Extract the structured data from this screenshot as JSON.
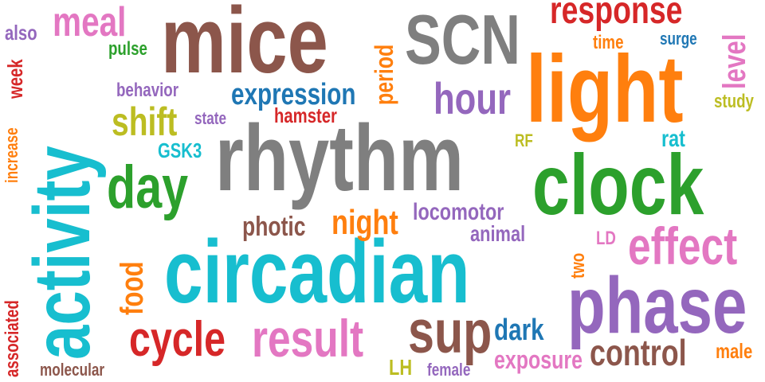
{
  "palette": {
    "blue": "#1f77b4",
    "orange": "#ff7f0e",
    "green": "#2ca02c",
    "red": "#d62728",
    "purple": "#9467bd",
    "brown": "#8c564b",
    "pink": "#e377c2",
    "gray": "#7f7f7f",
    "olive": "#bcbd22",
    "cyan": "#17becf"
  },
  "words": {
    "mice": "mice",
    "scn": "SCN",
    "response": "response",
    "light": "light",
    "rhythm": "rhythm",
    "clock": "clock",
    "circadian": "circadian",
    "phase": "phase",
    "activity": "activity",
    "day": "day",
    "meal": "meal",
    "also": "also",
    "pulse": "pulse",
    "week": "week",
    "behavior": "behavior",
    "expression": "expression",
    "period": "period",
    "hour": "hour",
    "time": "time",
    "surge": "surge",
    "level": "level",
    "study": "study",
    "shift": "shift",
    "state": "state",
    "hamster": "hamster",
    "increase": "increase",
    "gsk3": "GSK3",
    "rf": "RF",
    "rat": "rat",
    "photic": "photic",
    "night": "night",
    "locomotor": "locomotor",
    "animal": "animal",
    "ld": "LD",
    "effect": "effect",
    "food": "food",
    "two": "two",
    "associated": "associated",
    "cycle": "cycle",
    "result": "result",
    "sup": "sup",
    "dark": "dark",
    "exposure": "exposure",
    "control": "control",
    "male": "male",
    "molecular": "molecular",
    "lh": "LH",
    "female": "female"
  }
}
